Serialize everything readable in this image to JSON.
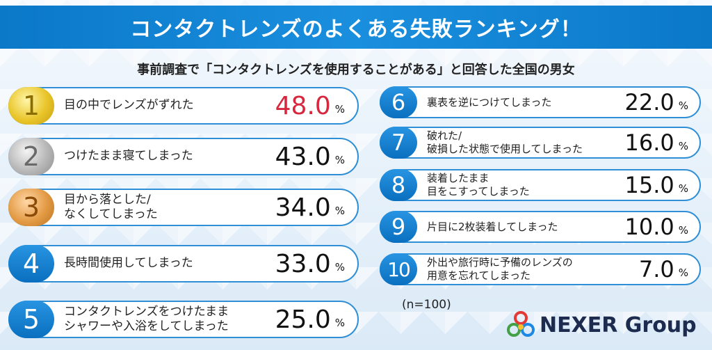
{
  "banner": {
    "title": "コンタクトレンズのよくある失敗ランキング！"
  },
  "subtitle": "事前調査で「コンタクトレンズを使用することがある」と回答した全国の男女",
  "note": "(n=100)",
  "logo": {
    "text": "NEXER Group",
    "colors": [
      "#e53935",
      "#43a047",
      "#1e88e5",
      "#fbc02d"
    ]
  },
  "colors": {
    "accent": "#1a8fde",
    "border": "#2f8fd6",
    "highlight": "#d7263d"
  },
  "unit": "%",
  "chart_data": {
    "type": "table",
    "title": "コンタクトレンズのよくある失敗ランキング！",
    "items": [
      {
        "rank": "1",
        "label": "目の中でレンズがずれた",
        "value": "48.0"
      },
      {
        "rank": "2",
        "label": "つけたまま寝てしまった",
        "value": "43.0"
      },
      {
        "rank": "3",
        "label": "目から落とした/\nなくしてしまった",
        "value": "34.0"
      },
      {
        "rank": "4",
        "label": "長時間使用してしまった",
        "value": "33.0"
      },
      {
        "rank": "5",
        "label": "コンタクトレンズをつけたまま\nシャワーや入浴をしてしまった",
        "value": "25.0"
      },
      {
        "rank": "6",
        "label": "裏表を逆につけてしまった",
        "value": "22.0"
      },
      {
        "rank": "7",
        "label": "破れた/\n破損した状態で使用してしまった",
        "value": "16.0"
      },
      {
        "rank": "8",
        "label": "装着したまま\n目をこすってしまった",
        "value": "15.0"
      },
      {
        "rank": "9",
        "label": "片目に2枚装着してしまった",
        "value": "10.0"
      },
      {
        "rank": "10",
        "label": "外出や旅行時に予備のレンズの\n用意を忘れてしまった",
        "value": "7.0"
      }
    ]
  }
}
